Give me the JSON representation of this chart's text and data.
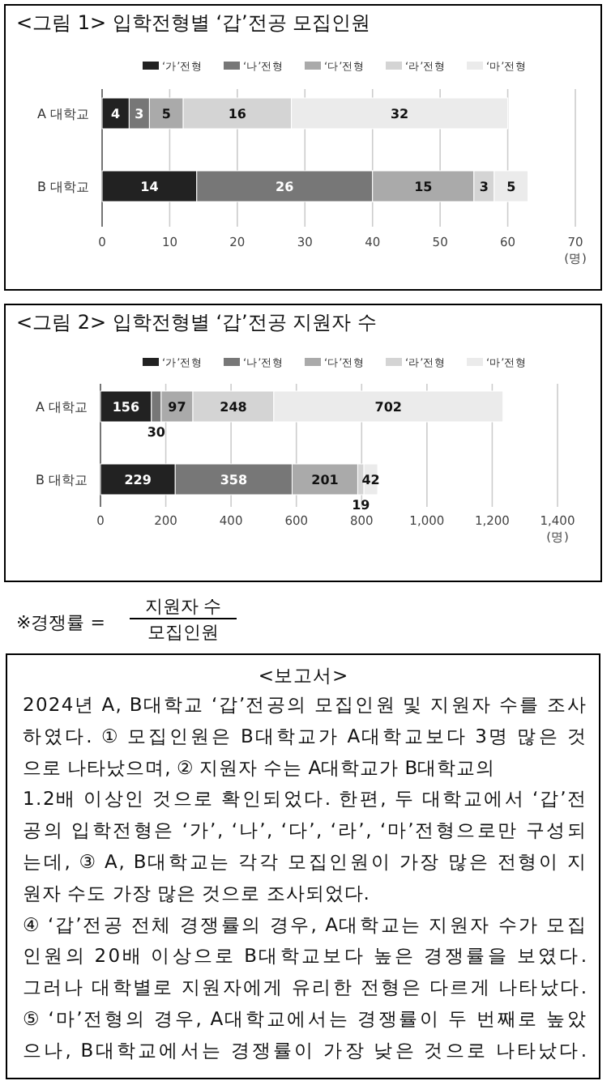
{
  "chart_data": [
    {
      "type": "bar",
      "orientation": "horizontal",
      "stacked": true,
      "title": "<그림 1> 입학전형별 ‘갑’전공 모집인원",
      "categories": [
        "A 대학교",
        "B 대학교"
      ],
      "series": [
        {
          "name": "‘가’전형",
          "color": "#222222",
          "values": [
            4,
            14
          ]
        },
        {
          "name": "‘나’전형",
          "color": "#777777",
          "values": [
            3,
            26
          ]
        },
        {
          "name": "‘다’전형",
          "color": "#aaaaaa",
          "values": [
            5,
            15
          ]
        },
        {
          "name": "‘라’전형",
          "color": "#d4d4d4",
          "values": [
            16,
            3
          ]
        },
        {
          "name": "‘마’전형",
          "color": "#ebebeb",
          "values": [
            32,
            5
          ]
        }
      ],
      "xlim": [
        0,
        70
      ],
      "xticks": [
        0,
        10,
        20,
        30,
        40,
        50,
        60,
        70
      ],
      "xlabel": "(명)",
      "grid": "x",
      "legend": "top",
      "data_labels": true
    },
    {
      "type": "bar",
      "orientation": "horizontal",
      "stacked": true,
      "title": "<그림 2> 입학전형별 ‘갑’전공 지원자 수",
      "categories": [
        "A 대학교",
        "B 대학교"
      ],
      "series": [
        {
          "name": "‘가’전형",
          "color": "#222222",
          "values": [
            156,
            229
          ]
        },
        {
          "name": "‘나’전형",
          "color": "#777777",
          "values": [
            30,
            358
          ]
        },
        {
          "name": "‘다’전형",
          "color": "#aaaaaa",
          "values": [
            97,
            201
          ]
        },
        {
          "name": "‘라’전형",
          "color": "#d4d4d4",
          "values": [
            248,
            19
          ]
        },
        {
          "name": "‘마’전형",
          "color": "#ebebeb",
          "values": [
            702,
            42
          ]
        }
      ],
      "xlim": [
        0,
        1400
      ],
      "xticks": [
        0,
        200,
        400,
        600,
        800,
        {
          "value": 1000,
          "label": "1,000"
        },
        {
          "value": 1200,
          "label": "1,200"
        },
        {
          "value": 1400,
          "label": "1,400"
        }
      ],
      "xlabel": "(명)",
      "grid": "x",
      "legend": "top",
      "data_labels": true
    },
    {
      "type": "other",
      "annotations": [
        "※경쟁률 =",
        "지원자 수",
        "모집인원"
      ]
    },
    {
      "type": "other",
      "title": "<보고서>",
      "annotations": [
        "2024년 A, B대학교 ‘갑’전공의 모집인원 및 지원자 수를 조사",
        "하였다. ① 모집인원은 B대학교가 A대학교보다 3명 많은 것",
        "으로 나타났으며, ② 지원자 수는 A대학교가 B대학교의",
        "1.2배 이상인 것으로 확인되었다. 한편, 두 대학교에서 ‘갑’전",
        "공의 입학전형은 ‘가’, ‘나’, ‘다’, ‘라’, ‘마’전형으로만 구성되",
        "는데, ③ A, B대학교는 각각 모집인원이 가장 많은 전형이 지",
        "원자 수도 가장 많은 것으로 조사되었다.",
        "④ ‘갑’전공 전체 경쟁률의 경우, A대학교는 지원자 수가 모집",
        "인원의 20배 이상으로 B대학교보다 높은 경쟁률을 보였다.",
        "그러나 대학별로 지원자에게 유리한 전형은 다르게 나타났다.",
        "⑤ ‘마’전형의 경우, A대학교에서는 경쟁률이 두 번째로 높았",
        "으나, B대학교에서는 경쟁률이 가장 낮은 것으로 나타났다."
      ]
    }
  ]
}
